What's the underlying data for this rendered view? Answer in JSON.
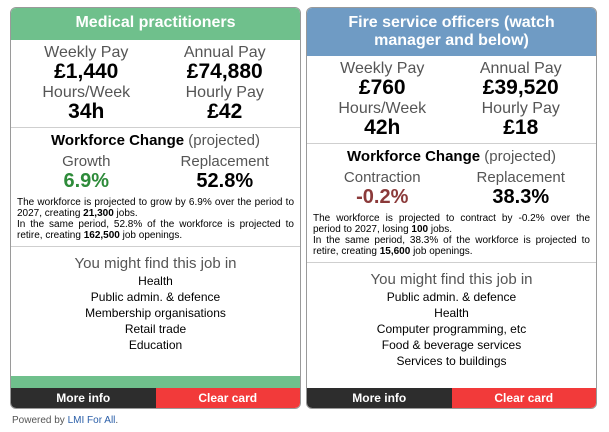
{
  "cards": [
    {
      "title": "Medical practitioners",
      "weekly_pay_label": "Weekly Pay",
      "weekly_pay": "£1,440",
      "annual_pay_label": "Annual Pay",
      "annual_pay": "£74,880",
      "hours_label": "Hours/Week",
      "hours": "34h",
      "hourly_label": "Hourly Pay",
      "hourly": "£42",
      "wf_title": "Workforce Change",
      "wf_projected": "(projected)",
      "change_label": "Growth",
      "change_value": "6.9%",
      "replacement_label": "Replacement",
      "replacement_value": "52.8%",
      "desc1_pre": "The workforce is projected to grow by 6.9% over the period to 2027, creating ",
      "desc1_bold": "21,300",
      "desc1_post": " jobs.",
      "desc2_pre": "In the same period, 52.8% of the workforce is projected to retire, creating ",
      "desc2_bold": "162,500",
      "desc2_post": " job openings.",
      "find_title": "You might find this job in",
      "industries": [
        "Health",
        "Public admin. & defence",
        "Membership organisations",
        "Retail trade",
        "Education"
      ],
      "more_info": "More info",
      "clear_card": "Clear card"
    },
    {
      "title": "Fire service officers (watch manager and below)",
      "weekly_pay_label": "Weekly Pay",
      "weekly_pay": "£760",
      "annual_pay_label": "Annual Pay",
      "annual_pay": "£39,520",
      "hours_label": "Hours/Week",
      "hours": "42h",
      "hourly_label": "Hourly Pay",
      "hourly": "£18",
      "wf_title": "Workforce Change",
      "wf_projected": "(projected)",
      "change_label": "Contraction",
      "change_value": "-0.2%",
      "replacement_label": "Replacement",
      "replacement_value": "38.3%",
      "desc1_pre": "The workforce is projected to contract by -0.2% over the period to 2027, losing ",
      "desc1_bold": "100",
      "desc1_post": " jobs.",
      "desc2_pre": "In the same period, 38.3% of the workforce is projected to retire, creating ",
      "desc2_bold": "15,600",
      "desc2_post": " job openings.",
      "find_title": "You might find this job in",
      "industries": [
        "Public admin. & defence",
        "Health",
        "Computer programming, etc",
        "Food & beverage services",
        "Services to buildings"
      ],
      "more_info": "More info",
      "clear_card": "Clear card"
    }
  ],
  "footer": {
    "powered_by": "Powered by",
    "link": "LMI For All",
    "suffix": "."
  },
  "colors": {
    "left_header": "#6fc08c",
    "right_header": "#6f9bc4",
    "growth": "#2e8b3a",
    "contraction": "#8b3a3a",
    "more_info_bg": "#2d2d2d",
    "clear_card_bg": "#f23a3a"
  }
}
